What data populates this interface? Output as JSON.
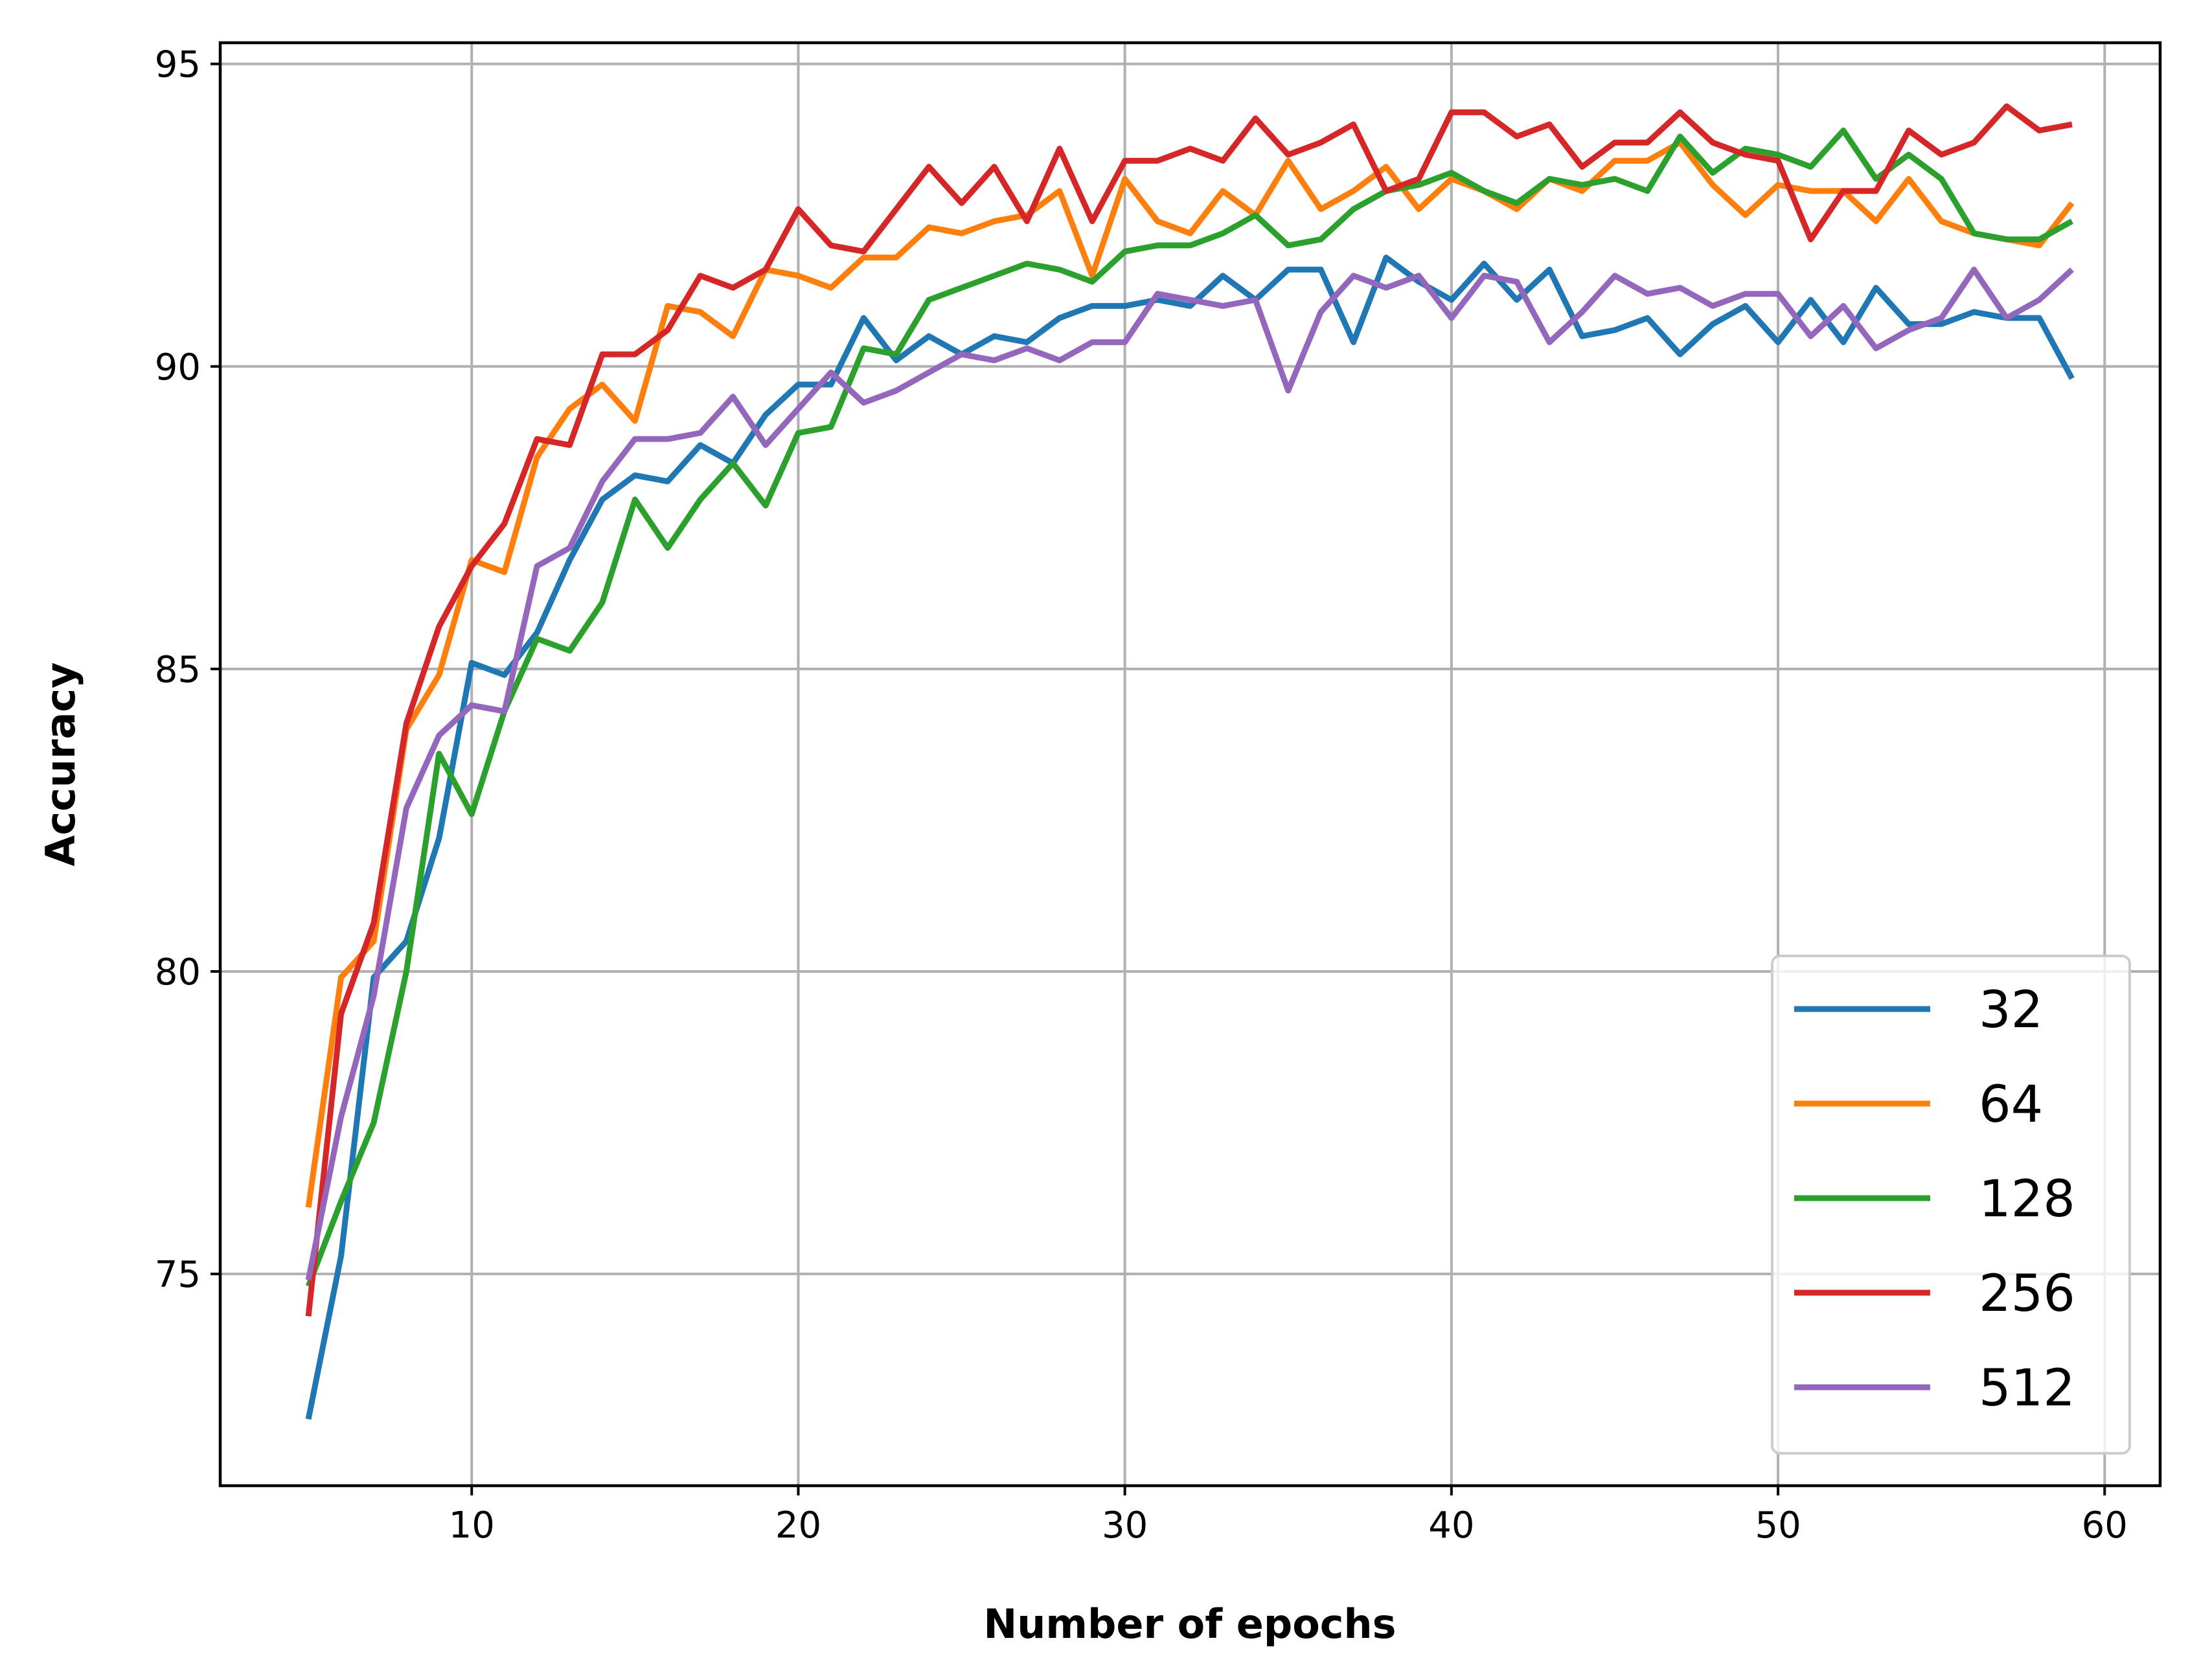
{
  "chart_data": {
    "type": "line",
    "title": "",
    "xlabel": "Number of epochs",
    "ylabel": "Accuracy",
    "xlim": [
      2.3,
      61.7
    ],
    "ylim": [
      71.5,
      95.35
    ],
    "xticks": [
      10,
      20,
      30,
      40,
      50,
      60
    ],
    "yticks": [
      75,
      80,
      85,
      90,
      95
    ],
    "grid": true,
    "legend_position": "lower-right",
    "x": [
      5,
      6,
      7,
      8,
      9,
      10,
      11,
      12,
      13,
      14,
      15,
      16,
      17,
      18,
      19,
      20,
      21,
      22,
      23,
      24,
      25,
      26,
      27,
      28,
      29,
      30,
      31,
      32,
      33,
      34,
      35,
      36,
      37,
      38,
      39,
      40,
      41,
      42,
      43,
      44,
      45,
      46,
      47,
      48,
      49,
      50,
      51,
      52,
      53,
      54,
      55,
      56,
      57,
      58,
      59
    ],
    "series": [
      {
        "name": "32",
        "color": "#1f77b4",
        "values": [
          72.6,
          75.3,
          79.9,
          80.5,
          82.2,
          85.1,
          84.9,
          85.6,
          86.8,
          87.8,
          88.2,
          88.1,
          88.7,
          88.4,
          89.2,
          89.7,
          89.7,
          90.8,
          90.1,
          90.5,
          90.2,
          90.5,
          90.4,
          90.8,
          91.0,
          91.0,
          91.1,
          91.0,
          91.5,
          91.1,
          91.6,
          91.6,
          90.4,
          91.8,
          91.4,
          91.1,
          91.7,
          91.1,
          91.6,
          90.5,
          90.6,
          90.8,
          90.2,
          90.7,
          91.0,
          90.4,
          91.1,
          90.4,
          91.3,
          90.7,
          90.7,
          90.9,
          90.8,
          90.8,
          89.8
        ]
      },
      {
        "name": "64",
        "color": "#ff7f0e",
        "values": [
          76.1,
          79.9,
          80.5,
          84.0,
          84.9,
          86.8,
          86.6,
          88.5,
          89.3,
          89.7,
          89.1,
          91.0,
          90.9,
          90.5,
          91.6,
          91.5,
          91.3,
          91.8,
          91.8,
          92.3,
          92.2,
          92.4,
          92.5,
          92.9,
          91.5,
          93.1,
          92.4,
          92.2,
          92.9,
          92.5,
          93.4,
          92.6,
          92.9,
          93.3,
          92.6,
          93.1,
          92.9,
          92.6,
          93.1,
          92.9,
          93.4,
          93.4,
          93.7,
          93.0,
          92.5,
          93.0,
          92.9,
          92.9,
          92.4,
          93.1,
          92.4,
          92.2,
          92.1,
          92.0,
          92.7
        ]
      },
      {
        "name": "128",
        "color": "#2ca02c",
        "values": [
          74.8,
          76.2,
          77.5,
          80.0,
          83.6,
          82.6,
          84.3,
          85.5,
          85.3,
          86.1,
          87.8,
          87.0,
          87.8,
          88.4,
          87.7,
          88.9,
          89.0,
          90.3,
          90.2,
          91.1,
          91.3,
          91.5,
          91.7,
          91.6,
          91.4,
          91.9,
          92.0,
          92.0,
          92.2,
          92.5,
          92.0,
          92.1,
          92.6,
          92.9,
          93.0,
          93.2,
          92.9,
          92.7,
          93.1,
          93.0,
          93.1,
          92.9,
          93.8,
          93.2,
          93.6,
          93.5,
          93.3,
          93.9,
          93.1,
          93.5,
          93.1,
          92.2,
          92.1,
          92.1,
          92.4
        ]
      },
      {
        "name": "256",
        "color": "#d62728",
        "values": [
          74.3,
          79.3,
          80.8,
          84.1,
          85.7,
          86.7,
          87.4,
          88.8,
          88.7,
          90.2,
          90.2,
          90.6,
          91.5,
          91.3,
          91.6,
          92.6,
          92.0,
          91.9,
          92.6,
          93.3,
          92.7,
          93.3,
          92.4,
          93.6,
          92.4,
          93.4,
          93.4,
          93.6,
          93.4,
          94.1,
          93.5,
          93.7,
          94.0,
          92.9,
          93.1,
          94.2,
          94.2,
          93.8,
          94.0,
          93.3,
          93.7,
          93.7,
          94.2,
          93.7,
          93.5,
          93.4,
          92.1,
          92.9,
          92.9,
          93.9,
          93.5,
          93.7,
          94.3,
          93.9,
          94.0
        ]
      },
      {
        "name": "512",
        "color": "#9467bd",
        "values": [
          74.9,
          77.6,
          79.6,
          82.7,
          83.9,
          84.4,
          84.3,
          86.7,
          87.0,
          88.1,
          88.8,
          88.8,
          88.9,
          89.5,
          88.7,
          89.3,
          89.9,
          89.4,
          89.6,
          89.9,
          90.2,
          90.1,
          90.3,
          90.1,
          90.4,
          90.4,
          91.2,
          91.1,
          91.0,
          91.1,
          89.6,
          90.9,
          91.5,
          91.3,
          91.5,
          90.8,
          91.5,
          91.4,
          90.4,
          90.9,
          91.5,
          91.2,
          91.3,
          91.0,
          91.2,
          91.2,
          90.5,
          91.0,
          90.3,
          90.6,
          90.8,
          91.6,
          90.8,
          91.1,
          91.6
        ]
      }
    ]
  }
}
